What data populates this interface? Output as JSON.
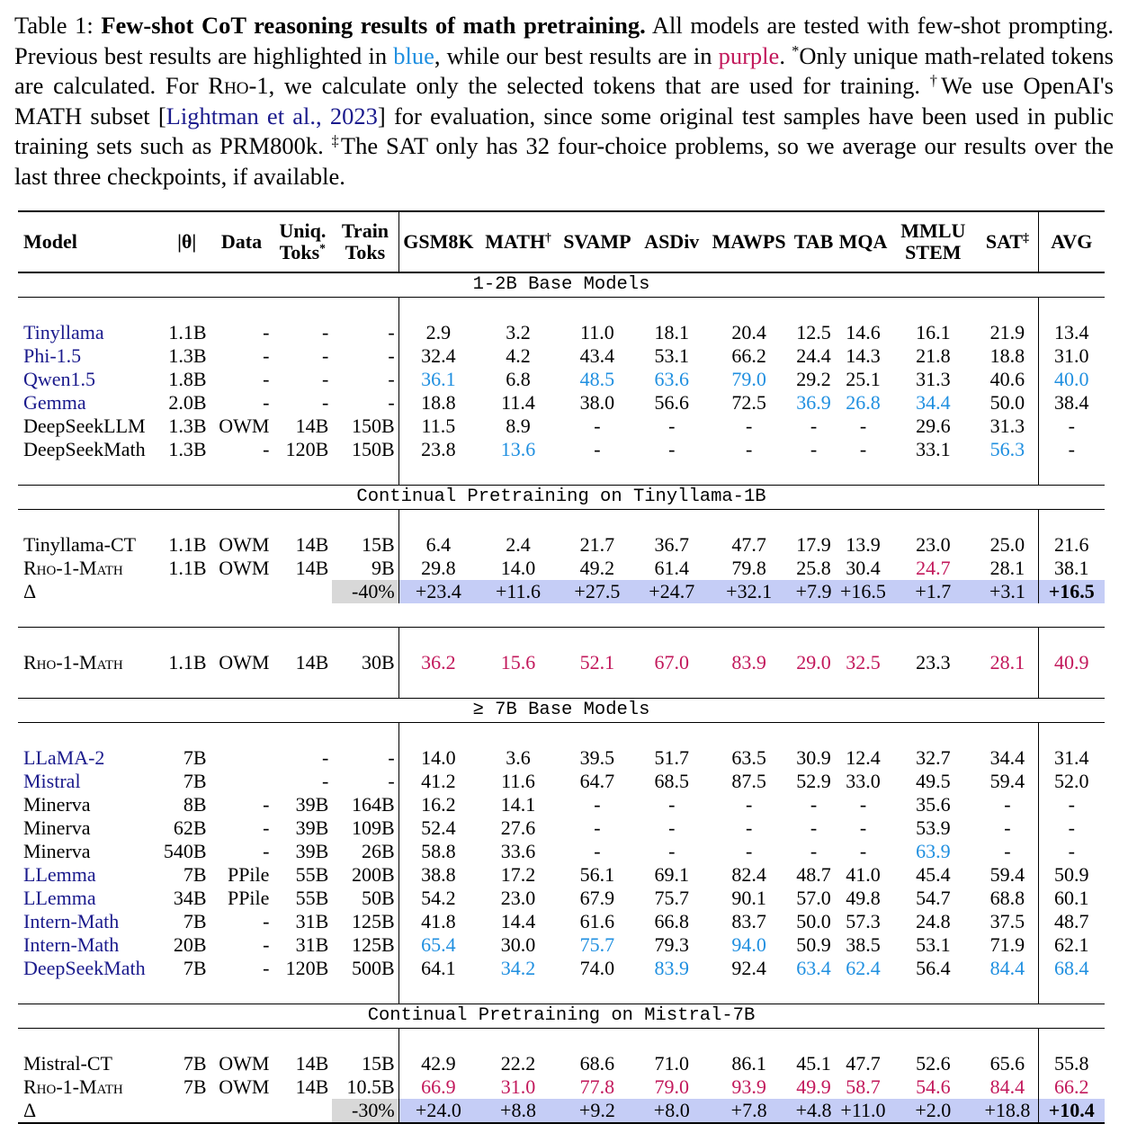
{
  "caption": {
    "label": "Table 1:",
    "bold_title": "Few-shot CoT reasoning results of math pretraining.",
    "text_1": " All models are tested with few-shot prompting. Previous best results are highlighted in ",
    "blue_word": "blue",
    "text_2": ", while our best results are in ",
    "purple_word": "purple",
    "text_3": ". ",
    "star": "*",
    "text_4": "Only unique math-related tokens are calculated. For ",
    "rho_name": "Rho-1",
    "text_5": ", we calculate only the selected tokens that are used for training. ",
    "dagger": "†",
    "text_6": "We use OpenAI's MATH subset [",
    "citation": "Lightman et al., 2023",
    "text_7": "] for evaluation, since some original test samples have been used in public training sets such as PRM800k. ",
    "ddagger": "‡",
    "text_8": "The SAT only has 32 four-choice problems, so we average our results over the last three checkpoints, if available."
  },
  "colors": {
    "blue": "#1f8fe0",
    "purple": "#c2185b",
    "navy": "#1a1a8c",
    "delta_bg": "#c5cdf6",
    "gray_bg": "#d8d8d8"
  },
  "header": {
    "model": "Model",
    "theta": "|θ|",
    "data": "Data",
    "uniq_1": "Uniq.",
    "uniq_2": "Toks",
    "uniq_star": "*",
    "train_1": "Train",
    "train_2": "Toks",
    "gsm8k": "GSM8K",
    "math": "MATH",
    "math_sup": "†",
    "svamp": "SVAMP",
    "asdiv": "ASDiv",
    "mawps": "MAWPS",
    "tab": "TAB",
    "mqa": "MQA",
    "mmlu_1": "MMLU",
    "mmlu_2": "STEM",
    "sat": "SAT",
    "sat_sup": "‡",
    "avg": "AVG"
  },
  "sections": {
    "s1": "1-2B Base Models",
    "s2": "Continual Pretraining on Tinyllama-1B",
    "s3": "≥ 7B Base Models",
    "s4": "Continual Pretraining on Mistral-7B"
  },
  "rows": {
    "r1": [
      "Tinyllama",
      "1.1B",
      "-",
      "-",
      "-",
      "2.9",
      "3.2",
      "11.0",
      "18.1",
      "20.4",
      "12.5",
      "14.6",
      "16.1",
      "21.9",
      "13.4"
    ],
    "r2": [
      "Phi-1.5",
      "1.3B",
      "-",
      "-",
      "-",
      "32.4",
      "4.2",
      "43.4",
      "53.1",
      "66.2",
      "24.4",
      "14.3",
      "21.8",
      "18.8",
      "31.0"
    ],
    "r3": [
      "Qwen1.5",
      "1.8B",
      "-",
      "-",
      "-",
      "36.1",
      "6.8",
      "48.5",
      "63.6",
      "79.0",
      "29.2",
      "25.1",
      "31.3",
      "40.6",
      "40.0"
    ],
    "r4": [
      "Gemma",
      "2.0B",
      "-",
      "-",
      "-",
      "18.8",
      "11.4",
      "38.0",
      "56.6",
      "72.5",
      "36.9",
      "26.8",
      "34.4",
      "50.0",
      "38.4"
    ],
    "r5": [
      "DeepSeekLLM",
      "1.3B",
      "OWM",
      "14B",
      "150B",
      "11.5",
      "8.9",
      "-",
      "-",
      "-",
      "-",
      "-",
      "29.6",
      "31.3",
      "-"
    ],
    "r6": [
      "DeepSeekMath",
      "1.3B",
      "-",
      "120B",
      "150B",
      "23.8",
      "13.6",
      "-",
      "-",
      "-",
      "-",
      "-",
      "33.1",
      "56.3",
      "-"
    ],
    "r7": [
      "Tinyllama-CT",
      "1.1B",
      "OWM",
      "14B",
      "15B",
      "6.4",
      "2.4",
      "21.7",
      "36.7",
      "47.7",
      "17.9",
      "13.9",
      "23.0",
      "25.0",
      "21.6"
    ],
    "r8": [
      "Rho-1-Math",
      "1.1B",
      "OWM",
      "14B",
      "9B",
      "29.8",
      "14.0",
      "49.2",
      "61.4",
      "79.8",
      "25.8",
      "30.4",
      "24.7",
      "28.1",
      "38.1"
    ],
    "r9": [
      "Δ",
      "",
      "",
      "",
      "-40%",
      "+23.4",
      "+11.6",
      "+27.5",
      "+24.7",
      "+32.1",
      "+7.9",
      "+16.5",
      "+1.7",
      "+3.1",
      "+16.5"
    ],
    "r10": [
      "Rho-1-Math",
      "1.1B",
      "OWM",
      "14B",
      "30B",
      "36.2",
      "15.6",
      "52.1",
      "67.0",
      "83.9",
      "29.0",
      "32.5",
      "23.3",
      "28.1",
      "40.9"
    ],
    "r11": [
      "LLaMA-2",
      "7B",
      "",
      "-",
      "-",
      "14.0",
      "3.6",
      "39.5",
      "51.7",
      "63.5",
      "30.9",
      "12.4",
      "32.7",
      "34.4",
      "31.4"
    ],
    "r12": [
      "Mistral",
      "7B",
      "",
      "-",
      "-",
      "41.2",
      "11.6",
      "64.7",
      "68.5",
      "87.5",
      "52.9",
      "33.0",
      "49.5",
      "59.4",
      "52.0"
    ],
    "r13": [
      "Minerva",
      "8B",
      "-",
      "39B",
      "164B",
      "16.2",
      "14.1",
      "-",
      "-",
      "-",
      "-",
      "-",
      "35.6",
      "-",
      "-"
    ],
    "r14": [
      "Minerva",
      "62B",
      "-",
      "39B",
      "109B",
      "52.4",
      "27.6",
      "-",
      "-",
      "-",
      "-",
      "-",
      "53.9",
      "-",
      "-"
    ],
    "r15": [
      "Minerva",
      "540B",
      "-",
      "39B",
      "26B",
      "58.8",
      "33.6",
      "-",
      "-",
      "-",
      "-",
      "-",
      "63.9",
      "-",
      "-"
    ],
    "r16": [
      "LLemma",
      "7B",
      "PPile",
      "55B",
      "200B",
      "38.8",
      "17.2",
      "56.1",
      "69.1",
      "82.4",
      "48.7",
      "41.0",
      "45.4",
      "59.4",
      "50.9"
    ],
    "r17": [
      "LLemma",
      "34B",
      "PPile",
      "55B",
      "50B",
      "54.2",
      "23.0",
      "67.9",
      "75.7",
      "90.1",
      "57.0",
      "49.8",
      "54.7",
      "68.8",
      "60.1"
    ],
    "r18": [
      "Intern-Math",
      "7B",
      "-",
      "31B",
      "125B",
      "41.8",
      "14.4",
      "61.6",
      "66.8",
      "83.7",
      "50.0",
      "57.3",
      "24.8",
      "37.5",
      "48.7"
    ],
    "r19": [
      "Intern-Math",
      "20B",
      "-",
      "31B",
      "125B",
      "65.4",
      "30.0",
      "75.7",
      "79.3",
      "94.0",
      "50.9",
      "38.5",
      "53.1",
      "71.9",
      "62.1"
    ],
    "r20": [
      "DeepSeekMath",
      "7B",
      "-",
      "120B",
      "500B",
      "64.1",
      "34.2",
      "74.0",
      "83.9",
      "92.4",
      "63.4",
      "62.4",
      "56.4",
      "84.4",
      "68.4"
    ],
    "r21": [
      "Mistral-CT",
      "7B",
      "OWM",
      "14B",
      "15B",
      "42.9",
      "22.2",
      "68.6",
      "71.0",
      "86.1",
      "45.1",
      "47.7",
      "52.6",
      "65.6",
      "55.8"
    ],
    "r22": [
      "Rho-1-Math",
      "7B",
      "OWM",
      "14B",
      "10.5B",
      "66.9",
      "31.0",
      "77.8",
      "79.0",
      "93.9",
      "49.9",
      "58.7",
      "54.6",
      "84.4",
      "66.2"
    ],
    "r23": [
      "Δ",
      "",
      "",
      "",
      "-30%",
      "+24.0",
      "+8.8",
      "+9.2",
      "+8.0",
      "+7.8",
      "+4.8",
      "+11.0",
      "+2.0",
      "+18.8",
      "+10.4"
    ]
  }
}
